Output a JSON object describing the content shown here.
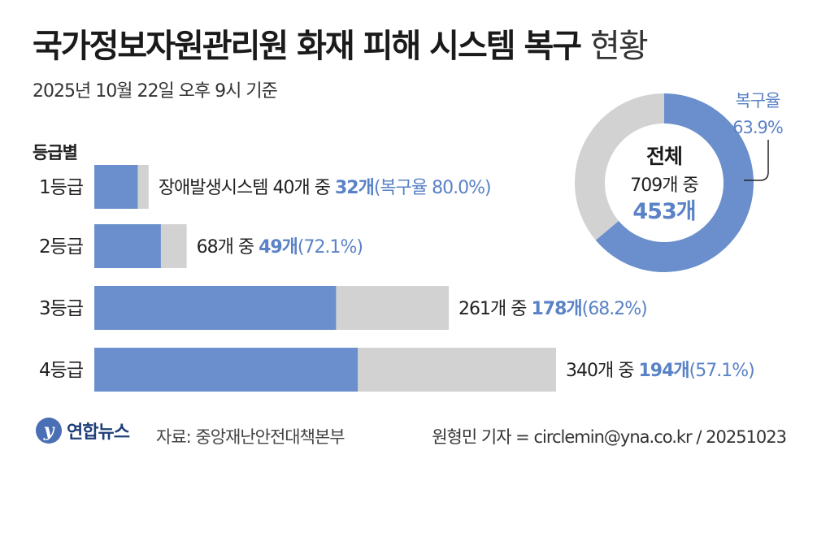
{
  "title_main": "국가정보자원관리원 화재 피해 시스템 복구",
  "title_light": "현황",
  "subtitle": "2025년 10월 22일 오후 9시 기준",
  "grade_header": "등급별",
  "colors": {
    "recovered": "#6a8fcc",
    "remaining": "#d2d2d2",
    "accent_text": "#5a82c6"
  },
  "chart_data": [
    {
      "type": "bar",
      "orientation": "horizontal",
      "stacked": true,
      "categories": [
        "1등급",
        "2등급",
        "3등급",
        "4등급"
      ],
      "series": [
        {
          "values": [
            32,
            49,
            178,
            194
          ]
        },
        {
          "values": [
            8,
            19,
            83,
            146
          ]
        }
      ],
      "totals": [
        40,
        68,
        261,
        340
      ],
      "rates": [
        "80.0%",
        "72.1%",
        "68.2%",
        "57.1%"
      ],
      "labels": [
        {
          "prefix": "장애발생시스템 40개 중 ",
          "bold": "32개",
          "suffix": "(복구율 80.0%)"
        },
        {
          "prefix": "68개 중 ",
          "bold": "49개",
          "suffix": "(72.1%)"
        },
        {
          "prefix": "261개 중 ",
          "bold": "178개",
          "suffix": "(68.2%)"
        },
        {
          "prefix": "340개 중 ",
          "bold": "194개",
          "suffix": "(57.1%)"
        }
      ],
      "xlim": [
        0,
        340
      ]
    },
    {
      "type": "pie",
      "style": "donut",
      "values": [
        453,
        256
      ],
      "total": 709,
      "rate_percent": 63.9,
      "center_title": "전체",
      "center_line": "709개 중",
      "center_value": "453개",
      "callout_label": "복구율",
      "callout_value": "63.9%"
    }
  ],
  "footer": {
    "logo_mark": "y",
    "logo_text": "연합뉴스",
    "source": "자료: 중앙재난안전대책본부",
    "credit": "원형민 기자 = circlemin@yna.co.kr / 20251023"
  }
}
